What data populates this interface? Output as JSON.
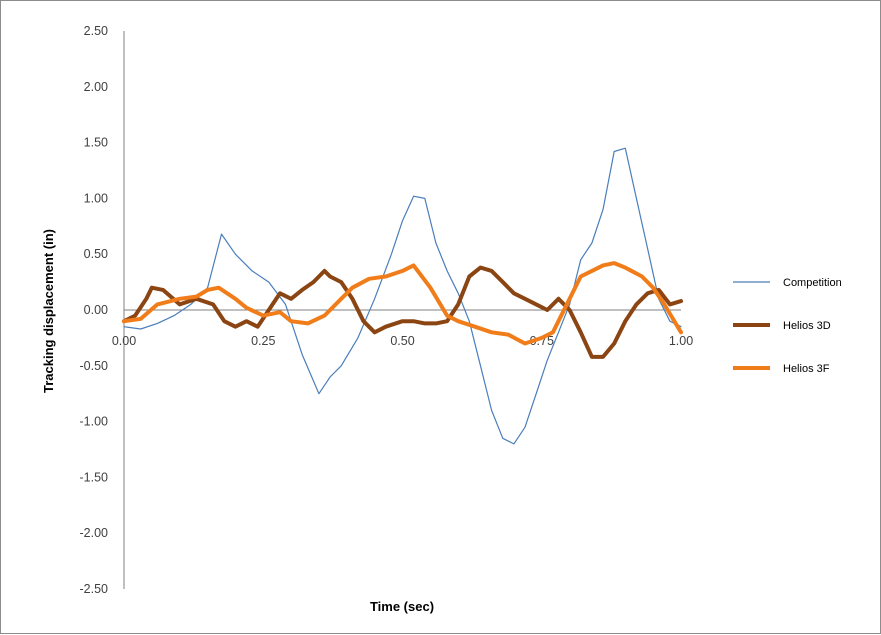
{
  "chart_data": {
    "type": "line",
    "title": "",
    "xlabel": "Time (sec)",
    "ylabel": "Tracking displacement  (in)",
    "xlim": [
      0,
      1
    ],
    "ylim": [
      -2.5,
      2.5
    ],
    "x_ticks": [
      "0.00",
      "0.25",
      "0.50",
      "0.75",
      "1.00"
    ],
    "y_ticks": [
      "2.50",
      "2.00",
      "1.50",
      "1.00",
      "0.50",
      "0.00",
      "-0.50",
      "-1.00",
      "-1.50",
      "-2.00",
      "-2.50"
    ],
    "grid": false,
    "legend_position": "right",
    "series": [
      {
        "name": "Competition",
        "color": "#4a7ebb",
        "line_width": "thin",
        "x": [
          0.0,
          0.03,
          0.06,
          0.09,
          0.12,
          0.15,
          0.175,
          0.2,
          0.23,
          0.26,
          0.29,
          0.32,
          0.35,
          0.37,
          0.39,
          0.42,
          0.45,
          0.48,
          0.5,
          0.52,
          0.54,
          0.56,
          0.58,
          0.6,
          0.62,
          0.64,
          0.66,
          0.68,
          0.7,
          0.72,
          0.74,
          0.76,
          0.78,
          0.8,
          0.82,
          0.84,
          0.86,
          0.88,
          0.9,
          0.92,
          0.94,
          0.96,
          0.98,
          1.0
        ],
        "y": [
          -0.15,
          -0.17,
          -0.12,
          -0.05,
          0.05,
          0.2,
          0.68,
          0.5,
          0.35,
          0.25,
          0.05,
          -0.4,
          -0.75,
          -0.6,
          -0.5,
          -0.25,
          0.1,
          0.5,
          0.8,
          1.02,
          1.0,
          0.6,
          0.35,
          0.15,
          -0.1,
          -0.5,
          -0.9,
          -1.15,
          -1.2,
          -1.05,
          -0.75,
          -0.45,
          -0.2,
          0.05,
          0.45,
          0.6,
          0.9,
          1.42,
          1.45,
          1.0,
          0.55,
          0.1,
          -0.1,
          -0.15
        ]
      },
      {
        "name": "Helios 3D",
        "color": "#8b4513",
        "line_width": "thick",
        "x": [
          0.0,
          0.02,
          0.04,
          0.05,
          0.07,
          0.1,
          0.13,
          0.16,
          0.18,
          0.2,
          0.22,
          0.24,
          0.26,
          0.28,
          0.3,
          0.32,
          0.34,
          0.36,
          0.37,
          0.39,
          0.41,
          0.43,
          0.45,
          0.47,
          0.5,
          0.52,
          0.54,
          0.56,
          0.58,
          0.6,
          0.62,
          0.64,
          0.66,
          0.68,
          0.7,
          0.72,
          0.74,
          0.76,
          0.78,
          0.8,
          0.82,
          0.84,
          0.86,
          0.88,
          0.9,
          0.92,
          0.94,
          0.96,
          0.98,
          1.0
        ],
        "y": [
          -0.1,
          -0.05,
          0.1,
          0.2,
          0.18,
          0.05,
          0.1,
          0.05,
          -0.1,
          -0.15,
          -0.1,
          -0.15,
          0.0,
          0.15,
          0.1,
          0.18,
          0.25,
          0.35,
          0.3,
          0.25,
          0.1,
          -0.1,
          -0.2,
          -0.15,
          -0.1,
          -0.1,
          -0.12,
          -0.12,
          -0.1,
          0.05,
          0.3,
          0.38,
          0.35,
          0.25,
          0.15,
          0.1,
          0.05,
          0.0,
          0.1,
          0.0,
          -0.2,
          -0.42,
          -0.42,
          -0.3,
          -0.1,
          0.05,
          0.15,
          0.18,
          0.05,
          0.08
        ]
      },
      {
        "name": "Helios 3F",
        "color": "#f07d1a",
        "line_width": "thick",
        "x": [
          0.0,
          0.03,
          0.06,
          0.1,
          0.13,
          0.15,
          0.17,
          0.2,
          0.22,
          0.25,
          0.28,
          0.3,
          0.33,
          0.36,
          0.39,
          0.41,
          0.44,
          0.47,
          0.5,
          0.52,
          0.55,
          0.58,
          0.6,
          0.63,
          0.66,
          0.69,
          0.72,
          0.75,
          0.77,
          0.8,
          0.82,
          0.84,
          0.86,
          0.88,
          0.9,
          0.93,
          0.95,
          0.97,
          1.0
        ],
        "y": [
          -0.1,
          -0.08,
          0.05,
          0.1,
          0.12,
          0.18,
          0.2,
          0.1,
          0.02,
          -0.05,
          -0.02,
          -0.1,
          -0.12,
          -0.05,
          0.1,
          0.2,
          0.28,
          0.3,
          0.35,
          0.4,
          0.2,
          -0.05,
          -0.1,
          -0.15,
          -0.2,
          -0.22,
          -0.3,
          -0.25,
          -0.2,
          0.1,
          0.3,
          0.35,
          0.4,
          0.42,
          0.38,
          0.3,
          0.2,
          0.05,
          -0.2
        ]
      }
    ]
  }
}
